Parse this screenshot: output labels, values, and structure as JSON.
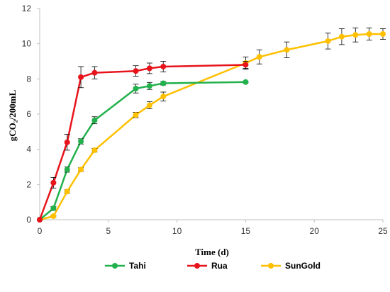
{
  "chart_data": {
    "type": "line",
    "xlabel": "Time (d)",
    "ylabel": "gCO₂/200mL",
    "xlim": [
      0,
      25
    ],
    "ylim": [
      0,
      12
    ],
    "x_ticks": [
      0,
      5,
      10,
      15,
      20,
      25
    ],
    "y_ticks": [
      0,
      2,
      4,
      6,
      8,
      10,
      12
    ],
    "grid": false,
    "legend_position": "bottom",
    "series": [
      {
        "name": "Tahi",
        "color": "#22b14c",
        "x": [
          0,
          1,
          2,
          3,
          4,
          7,
          8,
          9,
          15
        ],
        "y": [
          0,
          0.65,
          2.85,
          4.45,
          5.65,
          7.45,
          7.6,
          7.75,
          7.82
        ],
        "err": [
          0,
          0.1,
          0.15,
          0.15,
          0.2,
          0.25,
          0.2,
          0.1,
          0.05
        ]
      },
      {
        "name": "Rua",
        "color": "#e8141c",
        "x": [
          0,
          1,
          2,
          3,
          4,
          7,
          8,
          9,
          15
        ],
        "y": [
          0,
          2.1,
          4.4,
          8.1,
          8.35,
          8.45,
          8.6,
          8.7,
          8.8
        ],
        "err": [
          0,
          0.3,
          0.45,
          0.6,
          0.35,
          0.3,
          0.3,
          0.3,
          0.2
        ]
      },
      {
        "name": "SunGold",
        "color": "#ffc000",
        "x": [
          0,
          1,
          2,
          3,
          4,
          7,
          8,
          9,
          15,
          16,
          18,
          21,
          22,
          23,
          24,
          25
        ],
        "y": [
          0,
          0.2,
          1.6,
          2.85,
          3.95,
          5.95,
          6.5,
          7.0,
          8.9,
          9.25,
          9.65,
          10.15,
          10.4,
          10.5,
          10.55,
          10.55
        ],
        "err": [
          0,
          0.05,
          0.1,
          0.1,
          0.1,
          0.15,
          0.2,
          0.25,
          0.35,
          0.4,
          0.45,
          0.45,
          0.45,
          0.4,
          0.35,
          0.3
        ]
      }
    ]
  }
}
